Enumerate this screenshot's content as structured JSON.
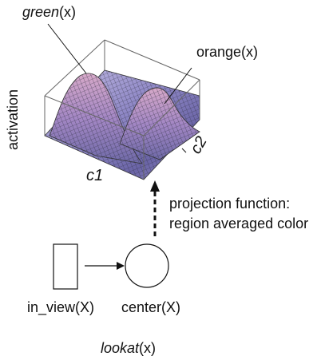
{
  "labels": {
    "green_fn": "green",
    "green_arg": "(x)",
    "orange": "orange(x)",
    "activation": "activation",
    "c1": "c1",
    "c2": "c2",
    "projection_line1": "projection function:",
    "projection_line2": "region averaged color",
    "in_view": "in_view(X)",
    "center": "center(X)",
    "lookat_fn": "lookat",
    "lookat_arg": "(x)"
  },
  "colors": {
    "surface_light": "#dcd6f0",
    "surface_dark": "#6f6aa8",
    "surface_pink": "#c8a0c0",
    "mesh": "#2a2a3a",
    "box": "#555555"
  }
}
